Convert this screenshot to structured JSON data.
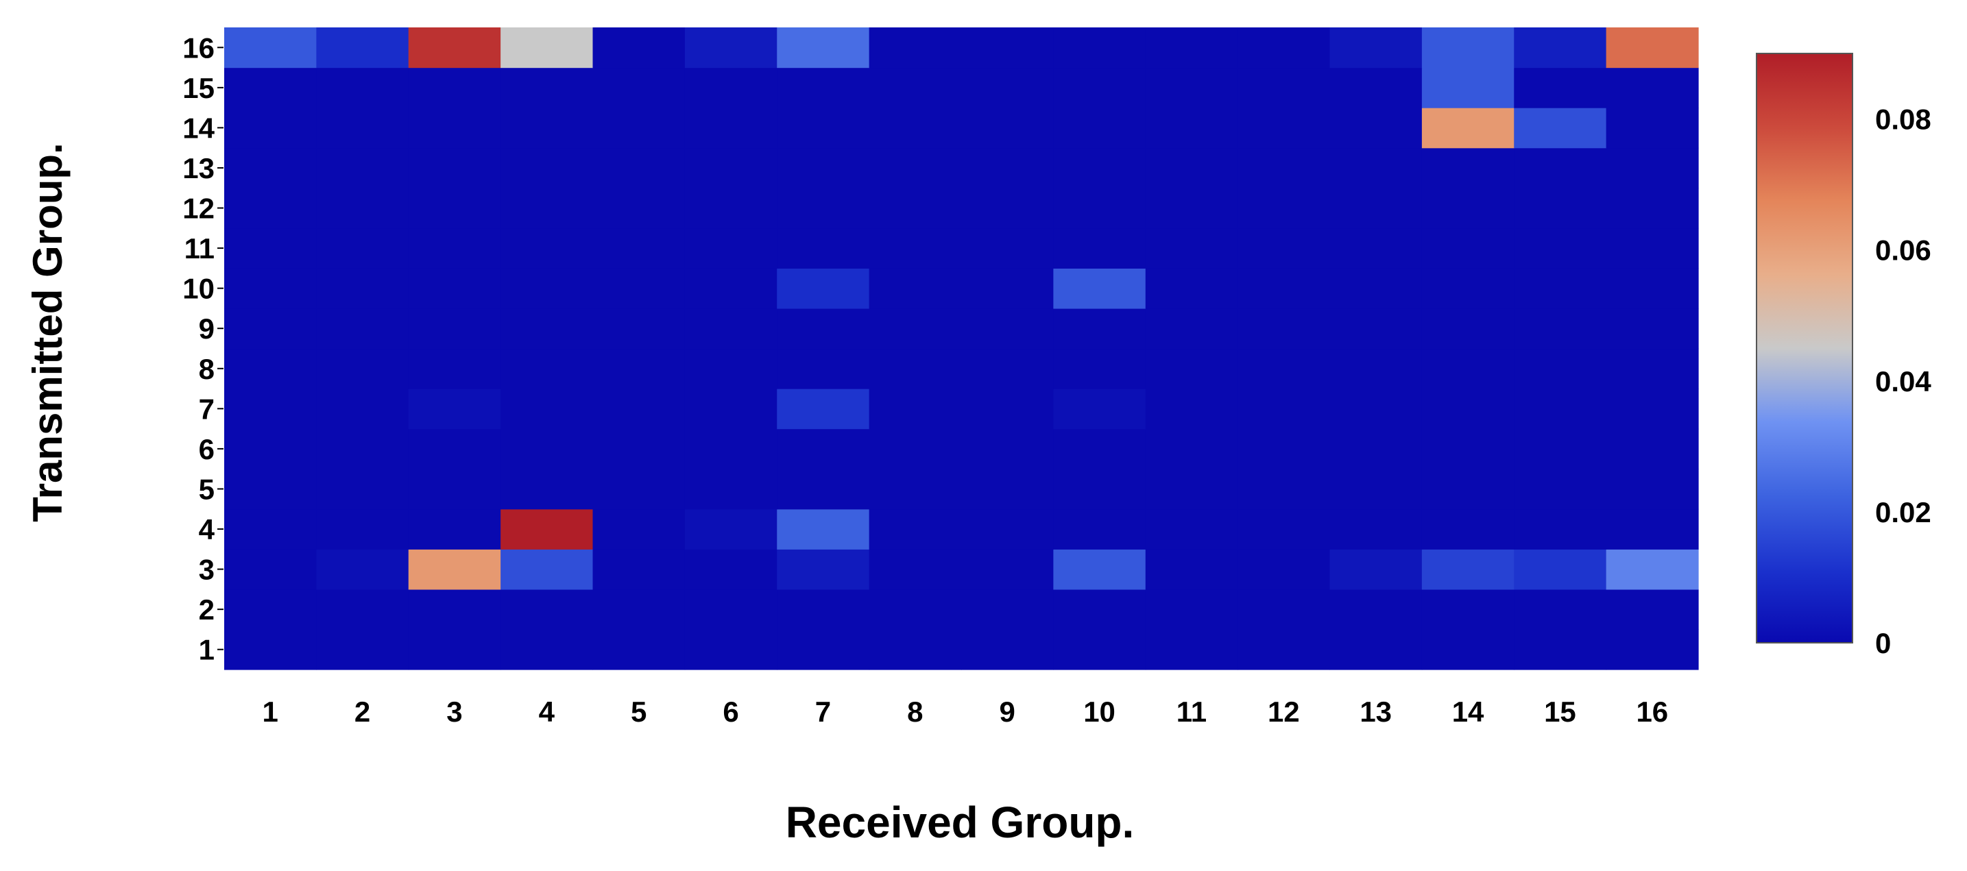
{
  "chart_data": {
    "type": "heatmap",
    "title": "",
    "xlabel": "Received Group.",
    "ylabel": "Transmitted Group.",
    "x_categories": [
      "1",
      "2",
      "3",
      "4",
      "5",
      "6",
      "7",
      "8",
      "9",
      "10",
      "11",
      "12",
      "13",
      "14",
      "15",
      "16"
    ],
    "y_categories": [
      "1",
      "2",
      "3",
      "4",
      "5",
      "6",
      "7",
      "8",
      "9",
      "10",
      "11",
      "12",
      "13",
      "14",
      "15",
      "16"
    ],
    "value_range": [
      0,
      0.09
    ],
    "colorbar": {
      "ticks": [
        0,
        0.02,
        0.04,
        0.06,
        0.08
      ],
      "tick_labels": [
        "0",
        "0.02",
        "0.04",
        "0.06",
        "0.08"
      ],
      "colormap": "coolwarm"
    },
    "matrix": [
      [
        0,
        0,
        0,
        0,
        0,
        0,
        0,
        0,
        0,
        0,
        0,
        0,
        0,
        0,
        0,
        0
      ],
      [
        0,
        0,
        0,
        0,
        0,
        0,
        0,
        0,
        0,
        0,
        0,
        0,
        0,
        0,
        0,
        0
      ],
      [
        0,
        0.002,
        0.062,
        0.018,
        0,
        0,
        0.005,
        0,
        0,
        0.02,
        0,
        0,
        0.004,
        0.015,
        0.012,
        0.03
      ],
      [
        0,
        0,
        0,
        0.09,
        0,
        0.002,
        0.022,
        0,
        0,
        0,
        0,
        0,
        0,
        0,
        0,
        0
      ],
      [
        0,
        0,
        0,
        0,
        0,
        0,
        0,
        0,
        0,
        0,
        0,
        0,
        0,
        0,
        0,
        0
      ],
      [
        0,
        0,
        0,
        0,
        0,
        0,
        0,
        0,
        0,
        0,
        0,
        0,
        0,
        0,
        0,
        0
      ],
      [
        0,
        0,
        0.002,
        0,
        0,
        0,
        0.012,
        0,
        0,
        0.002,
        0,
        0,
        0,
        0,
        0,
        0
      ],
      [
        0,
        0,
        0,
        0,
        0,
        0,
        0,
        0,
        0,
        0,
        0,
        0,
        0,
        0,
        0,
        0
      ],
      [
        0,
        0,
        0,
        0,
        0,
        0,
        0,
        0,
        0,
        0,
        0,
        0,
        0,
        0,
        0,
        0
      ],
      [
        0,
        0,
        0,
        0,
        0,
        0,
        0.01,
        0,
        0,
        0.02,
        0,
        0,
        0,
        0,
        0,
        0
      ],
      [
        0,
        0,
        0,
        0,
        0,
        0,
        0,
        0,
        0,
        0,
        0,
        0,
        0,
        0,
        0,
        0
      ],
      [
        0,
        0,
        0,
        0,
        0,
        0,
        0,
        0,
        0,
        0,
        0,
        0,
        0,
        0,
        0,
        0
      ],
      [
        0,
        0,
        0,
        0,
        0,
        0,
        0,
        0,
        0,
        0,
        0,
        0,
        0,
        0,
        0,
        0
      ],
      [
        0,
        0,
        0,
        0,
        0,
        0,
        0,
        0,
        0,
        0,
        0,
        0,
        0,
        0.062,
        0.018,
        0
      ],
      [
        0,
        0,
        0,
        0,
        0,
        0,
        0,
        0,
        0,
        0,
        0,
        0,
        0,
        0.02,
        0,
        0
      ],
      [
        0.02,
        0.01,
        0.085,
        0.045,
        0,
        0.005,
        0.025,
        0,
        0,
        0,
        0,
        0,
        0.004,
        0.02,
        0.006,
        0.072
      ]
    ]
  }
}
